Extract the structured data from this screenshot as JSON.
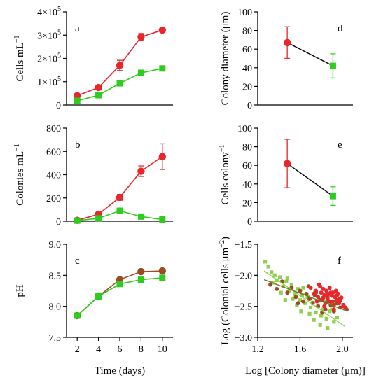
{
  "colors": {
    "red": "#e8262b",
    "green": "#2ecc1f",
    "brown": "#9c4a23",
    "olive": "#6b7a1f",
    "lightgreen": "#8fcf4f"
  },
  "chart_data": [
    {
      "id": "a",
      "type": "line",
      "panel_label": "a",
      "xlabel": "",
      "ylabel": "Cells mL",
      "ylabel_sup": "−1",
      "xlim": [
        1,
        11
      ],
      "ylim": [
        0,
        400000
      ],
      "xticks": [],
      "xtick_labels": [],
      "yticks": [
        0,
        100000,
        200000,
        300000,
        400000
      ],
      "ytick_labels": [
        {
          "base": "0",
          "sup": ""
        },
        {
          "base": "1×10",
          "sup": "5"
        },
        {
          "base": "2×10",
          "sup": "5"
        },
        {
          "base": "3×10",
          "sup": "5"
        },
        {
          "base": "4×10",
          "sup": "5"
        }
      ],
      "series": [
        {
          "x": [
            2,
            4,
            6,
            8,
            10
          ],
          "values": [
            40000,
            75000,
            170000,
            292000,
            322000
          ],
          "err": [
            5000,
            8000,
            22000,
            15000,
            6000
          ],
          "marker": "circle",
          "color": "red"
        },
        {
          "x": [
            2,
            4,
            6,
            8,
            10
          ],
          "values": [
            18000,
            42000,
            93000,
            138000,
            157000
          ],
          "err": [
            3000,
            5000,
            6000,
            12000,
            6000
          ],
          "marker": "square",
          "color": "green"
        }
      ]
    },
    {
      "id": "b",
      "type": "line",
      "panel_label": "b",
      "xlabel": "",
      "ylabel": "Colonies mL",
      "ylabel_sup": "−1",
      "xlim": [
        1,
        11
      ],
      "ylim": [
        0,
        800
      ],
      "xticks": [],
      "xtick_labels": [],
      "yticks": [
        0,
        200,
        400,
        600,
        800
      ],
      "ytick_labels": [
        {
          "base": "0",
          "sup": ""
        },
        {
          "base": "200",
          "sup": ""
        },
        {
          "base": "400",
          "sup": ""
        },
        {
          "base": "600",
          "sup": ""
        },
        {
          "base": "800",
          "sup": ""
        }
      ],
      "series": [
        {
          "x": [
            2,
            4,
            6,
            8,
            10
          ],
          "values": [
            8,
            60,
            205,
            430,
            555
          ],
          "err": [
            5,
            10,
            25,
            45,
            110
          ],
          "marker": "circle",
          "color": "red"
        },
        {
          "x": [
            2,
            4,
            6,
            8,
            10
          ],
          "values": [
            5,
            25,
            90,
            40,
            15
          ],
          "err": [
            3,
            5,
            10,
            5,
            3
          ],
          "marker": "square",
          "color": "green"
        }
      ]
    },
    {
      "id": "c",
      "type": "line",
      "panel_label": "c",
      "xlabel": "Time (days)",
      "ylabel": "pH",
      "ylabel_sup": "",
      "xlim": [
        1,
        11
      ],
      "ylim": [
        7.5,
        9.0
      ],
      "xticks": [
        2,
        4,
        6,
        8,
        10
      ],
      "xtick_labels": [
        "2",
        "4",
        "6",
        "8",
        "10"
      ],
      "yticks": [
        7.5,
        8.0,
        8.5,
        9.0
      ],
      "ytick_labels": [
        {
          "base": "7.5",
          "sup": ""
        },
        {
          "base": "8.0",
          "sup": ""
        },
        {
          "base": "8.5",
          "sup": ""
        },
        {
          "base": "9.0",
          "sup": ""
        }
      ],
      "series": [
        {
          "x": [
            2,
            4,
            6,
            8,
            10
          ],
          "values": [
            7.85,
            8.16,
            8.43,
            8.56,
            8.57
          ],
          "err": [
            0,
            0,
            0,
            0,
            0
          ],
          "marker": "circle",
          "color": "brown"
        },
        {
          "x": [
            2,
            4,
            6,
            8,
            10
          ],
          "values": [
            7.85,
            8.16,
            8.36,
            8.43,
            8.46
          ],
          "err": [
            0,
            0,
            0,
            0,
            0
          ],
          "marker": "square",
          "color": "green"
        }
      ]
    },
    {
      "id": "d",
      "type": "line",
      "panel_label": "d",
      "xlabel": "",
      "ylabel": "Colony diameter (μm)",
      "ylabel_sup": "",
      "xlim": [
        0,
        1
      ],
      "ylim": [
        0,
        100
      ],
      "xticks": [],
      "xtick_labels": [],
      "yticks": [
        0,
        20,
        40,
        60,
        80,
        100
      ],
      "ytick_labels": [
        {
          "base": "0",
          "sup": ""
        },
        {
          "base": "20",
          "sup": ""
        },
        {
          "base": "40",
          "sup": ""
        },
        {
          "base": "60",
          "sup": ""
        },
        {
          "base": "80",
          "sup": ""
        },
        {
          "base": "100",
          "sup": ""
        }
      ],
      "series": [
        {
          "x": [
            0.31,
            0.79
          ],
          "values": [
            67,
            42
          ],
          "err": [
            17,
            13
          ],
          "marker": "connector",
          "color": "black"
        },
        {
          "x": [
            0.31
          ],
          "values": [
            67
          ],
          "err": [
            17
          ],
          "marker": "circle",
          "color": "red"
        },
        {
          "x": [
            0.79
          ],
          "values": [
            42
          ],
          "err": [
            13
          ],
          "marker": "square",
          "color": "green"
        }
      ]
    },
    {
      "id": "e",
      "type": "line",
      "panel_label": "e",
      "xlabel": "",
      "ylabel": "Cells colony",
      "ylabel_sup": "−1",
      "xlim": [
        0,
        1
      ],
      "ylim": [
        0,
        100
      ],
      "xticks": [],
      "xtick_labels": [],
      "yticks": [
        0,
        20,
        40,
        60,
        80,
        100
      ],
      "ytick_labels": [
        {
          "base": "0",
          "sup": ""
        },
        {
          "base": "20",
          "sup": ""
        },
        {
          "base": "40",
          "sup": ""
        },
        {
          "base": "60",
          "sup": ""
        },
        {
          "base": "80",
          "sup": ""
        },
        {
          "base": "100",
          "sup": ""
        }
      ],
      "series": [
        {
          "x": [
            0.31,
            0.79
          ],
          "values": [
            62,
            27
          ],
          "err": [
            26,
            10
          ],
          "marker": "connector",
          "color": "black"
        },
        {
          "x": [
            0.31
          ],
          "values": [
            62
          ],
          "err": [
            26
          ],
          "marker": "circle",
          "color": "red"
        },
        {
          "x": [
            0.79
          ],
          "values": [
            27
          ],
          "err": [
            10
          ],
          "marker": "square",
          "color": "green"
        }
      ]
    },
    {
      "id": "f",
      "type": "scatter",
      "panel_label": "f",
      "xlabel": "Log [Colony diameter (μm)]",
      "ylabel": "Log (Colonial cells μm",
      "ylabel_sup": "−2",
      "ylabel_tail": ")",
      "xlim": [
        1.2,
        2.1
      ],
      "ylim": [
        -3.0,
        -1.5
      ],
      "xticks": [
        1.2,
        1.6,
        2.0
      ],
      "xtick_labels": [
        "1.2",
        "1.6",
        "2.0"
      ],
      "yticks": [
        -3.0,
        -2.5,
        -2.0,
        -1.5
      ],
      "ytick_labels": [
        {
          "base": "−3.0",
          "sup": ""
        },
        {
          "base": "−2.5",
          "sup": ""
        },
        {
          "base": "−2.0",
          "sup": ""
        },
        {
          "base": "−1.5",
          "sup": ""
        }
      ],
      "series": [
        {
          "marker": "square-small",
          "color": "lightgreen",
          "x": [
            1.27,
            1.3,
            1.33,
            1.36,
            1.38,
            1.41,
            1.44,
            1.47,
            1.5,
            1.52,
            1.55,
            1.58,
            1.6,
            1.62,
            1.65,
            1.67,
            1.7,
            1.72,
            1.75,
            1.77,
            1.8,
            1.82,
            1.85,
            1.88,
            1.92,
            1.95,
            1.34,
            1.42,
            1.48,
            1.53,
            1.57,
            1.63,
            1.69,
            1.74,
            1.79,
            1.84,
            1.9,
            1.46,
            1.61,
            1.68,
            1.73,
            1.86
          ],
          "values": [
            -1.78,
            -1.86,
            -1.95,
            -2.0,
            -2.08,
            -2.03,
            -2.18,
            -2.1,
            -2.25,
            -2.15,
            -2.3,
            -2.22,
            -2.4,
            -2.32,
            -2.45,
            -2.35,
            -2.52,
            -2.44,
            -2.6,
            -2.5,
            -2.65,
            -2.55,
            -2.7,
            -2.58,
            -2.75,
            -2.68,
            -2.12,
            -2.28,
            -2.05,
            -2.38,
            -2.48,
            -2.2,
            -2.62,
            -2.28,
            -2.8,
            -2.42,
            -2.55,
            -2.4,
            -2.58,
            -2.35,
            -2.72,
            -2.85
          ]
        },
        {
          "marker": "circle-small",
          "color": "brown",
          "x": [
            1.32,
            1.38,
            1.43,
            1.48,
            1.52,
            1.56,
            1.6,
            1.63,
            1.66,
            1.69,
            1.72,
            1.74,
            1.77,
            1.79,
            1.82,
            1.84,
            1.87,
            1.89,
            1.92,
            1.95,
            1.98,
            2.01,
            2.04,
            1.58,
            1.68,
            1.75,
            1.81,
            1.86,
            1.91,
            1.97
          ],
          "values": [
            -2.15,
            -2.22,
            -2.1,
            -2.28,
            -2.2,
            -2.35,
            -2.25,
            -2.42,
            -2.3,
            -2.38,
            -2.45,
            -2.32,
            -2.5,
            -2.4,
            -2.36,
            -2.55,
            -2.42,
            -2.48,
            -2.58,
            -2.45,
            -2.52,
            -2.48,
            -2.55,
            -2.45,
            -2.18,
            -2.28,
            -2.6,
            -2.32,
            -2.42,
            -2.38
          ]
        },
        {
          "marker": "circle-small",
          "color": "red",
          "x": [
            1.7,
            1.73,
            1.75,
            1.77,
            1.78,
            1.8,
            1.81,
            1.82,
            1.83,
            1.84,
            1.85,
            1.86,
            1.87,
            1.88,
            1.89,
            1.9,
            1.91,
            1.92,
            1.93,
            1.94,
            1.95,
            1.96,
            1.97,
            1.99,
            2.01,
            1.76,
            1.79,
            1.83,
            1.86,
            1.89,
            1.92,
            1.95,
            1.98,
            2.03
          ],
          "values": [
            -2.2,
            -2.3,
            -2.25,
            -2.35,
            -2.15,
            -2.28,
            -2.4,
            -2.22,
            -2.32,
            -2.45,
            -2.25,
            -2.38,
            -2.3,
            -2.2,
            -2.42,
            -2.33,
            -2.28,
            -2.48,
            -2.35,
            -2.25,
            -2.4,
            -2.3,
            -2.45,
            -2.36,
            -2.5,
            -2.42,
            -2.18,
            -2.5,
            -2.35,
            -2.28,
            -2.55,
            -2.32,
            -2.4,
            -2.52
          ]
        },
        {
          "marker": "fitline",
          "color": "lightgreen",
          "x": [
            1.26,
            2.02
          ],
          "values": [
            -1.93,
            -2.82
          ]
        },
        {
          "marker": "fitline",
          "color": "olive",
          "x": [
            1.26,
            2.05
          ],
          "values": [
            -2.07,
            -2.58
          ]
        }
      ]
    }
  ]
}
